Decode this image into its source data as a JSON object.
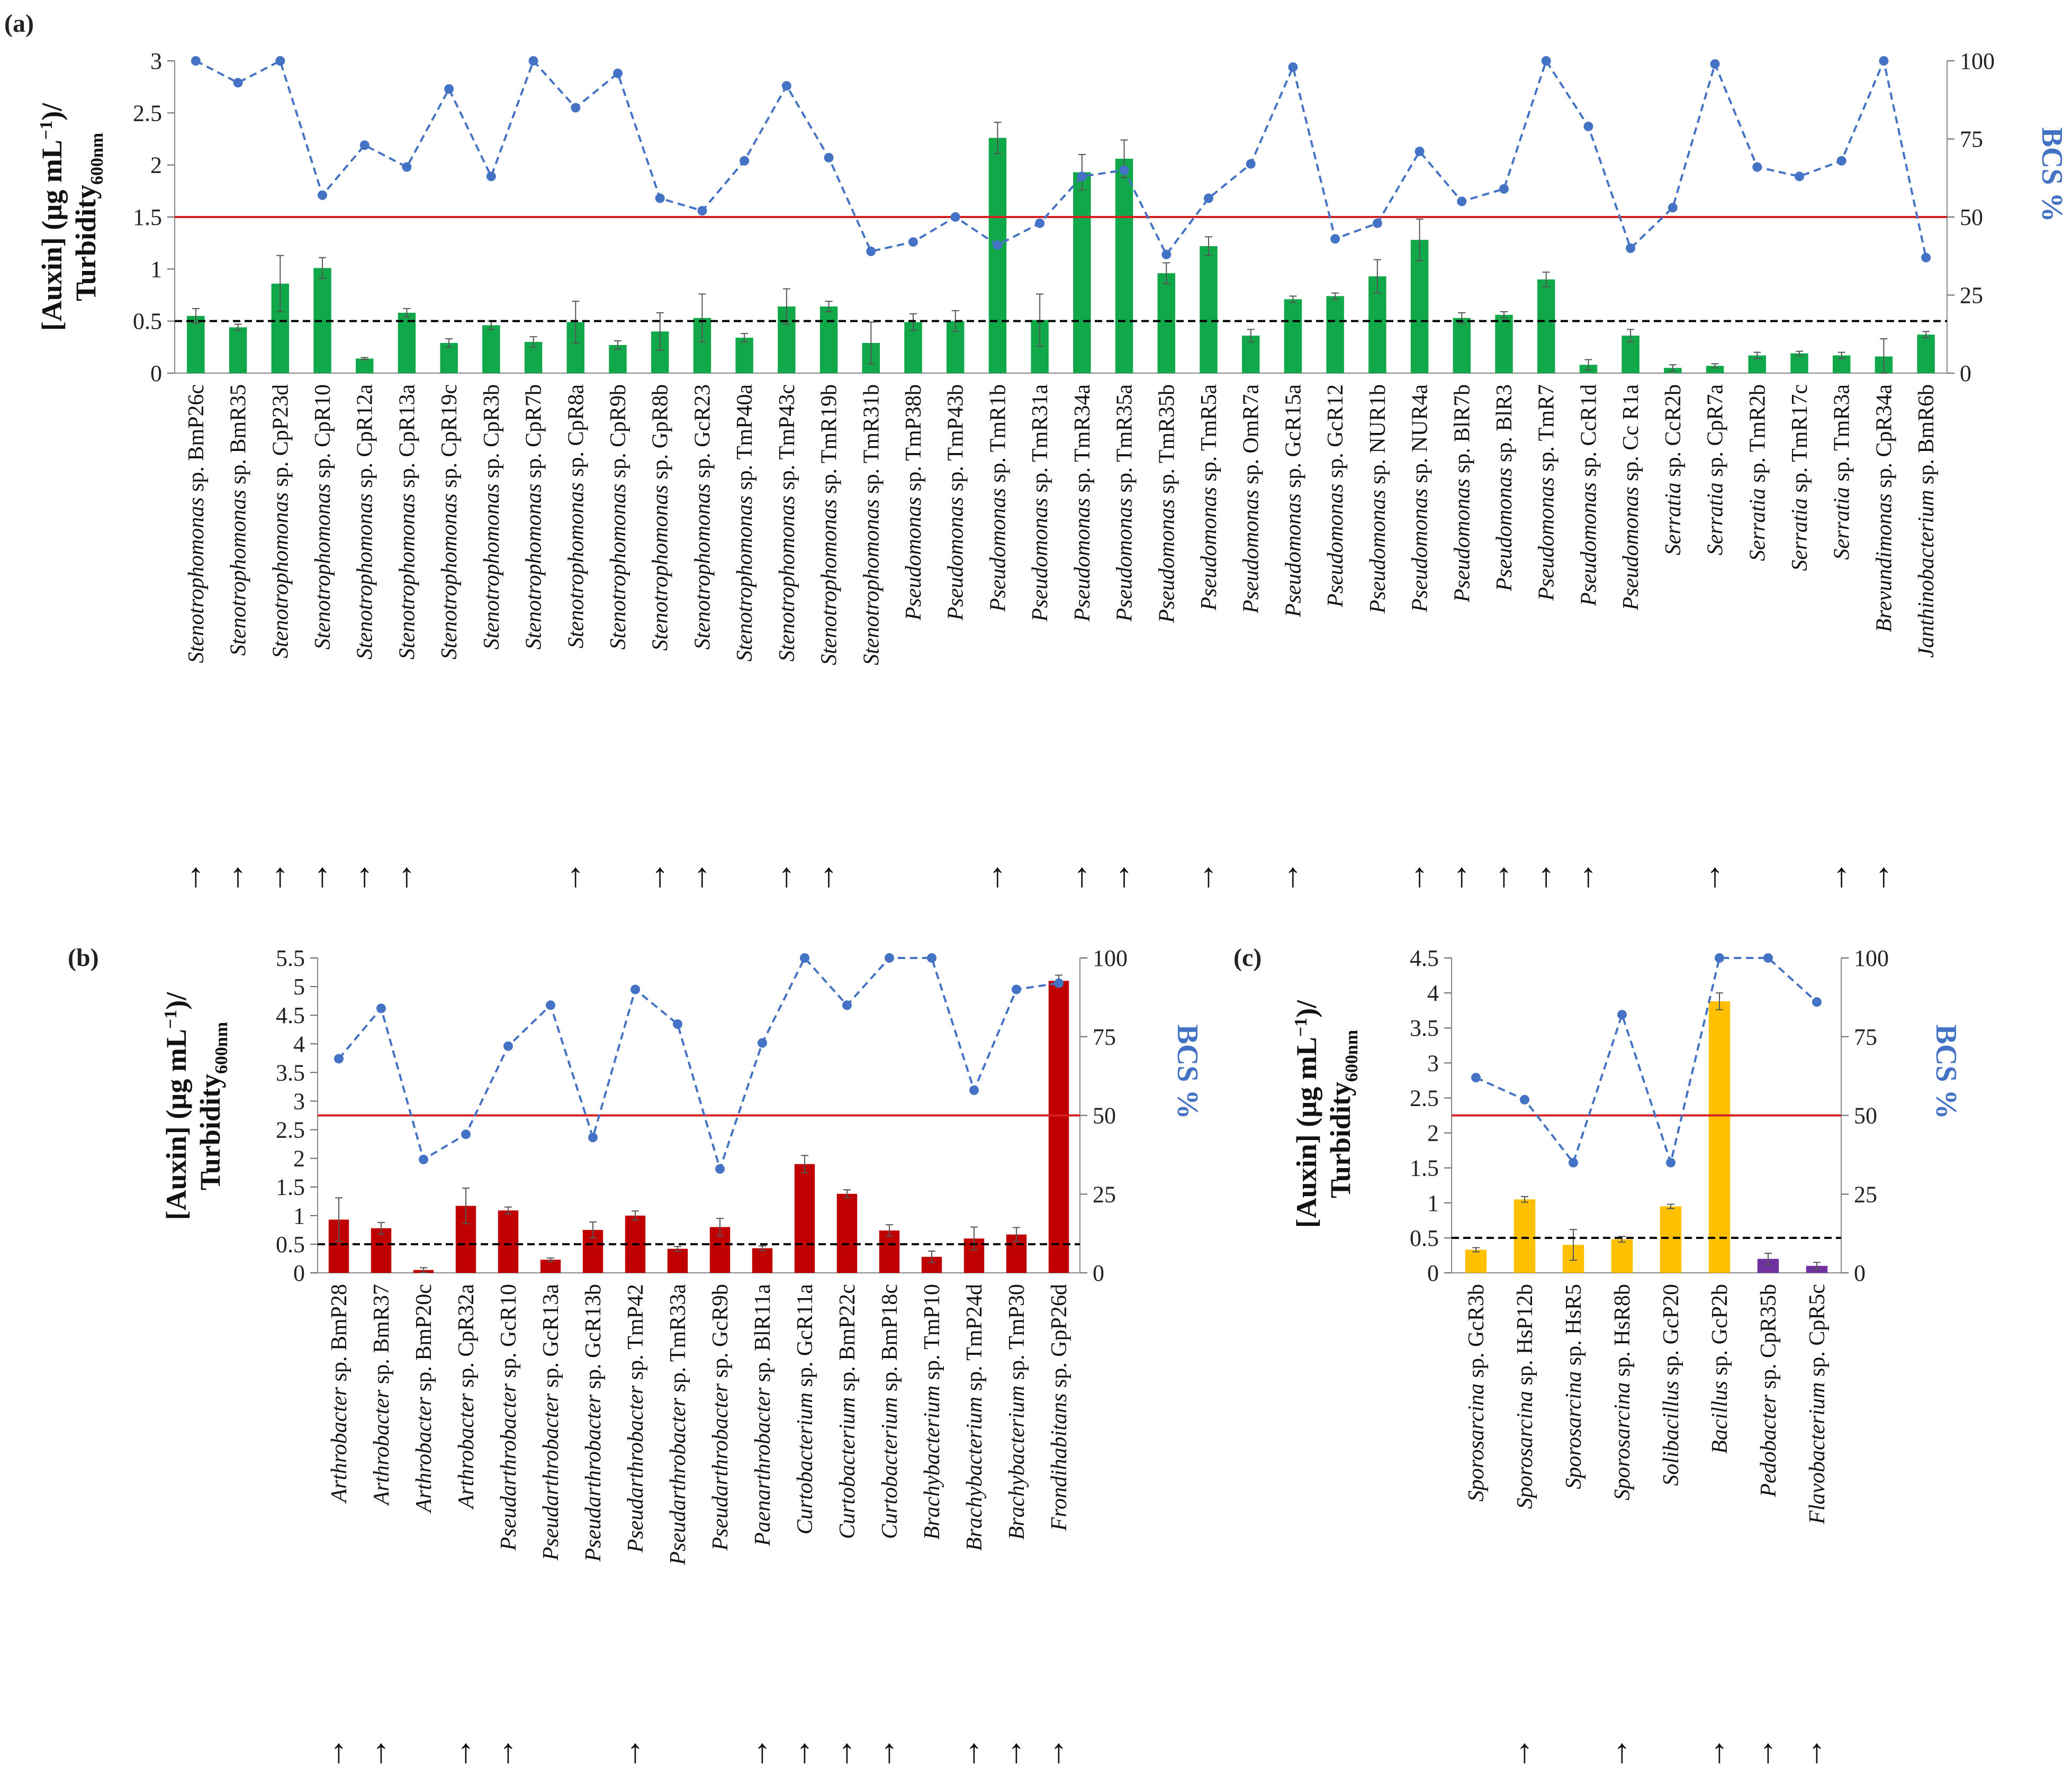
{
  "colors": {
    "green_bar": "#11a84a",
    "red_bar": "#c00000",
    "yellow_bar": "#ffc000",
    "purple_bar": "#7030a0",
    "bcs_line": "#4472c4",
    "threshold_line": "#d42020",
    "auxin_threshold": "#000000",
    "axis_text": "#222222",
    "bcs_label": "#4472c4"
  },
  "labels": {
    "y_left_line1": "[Auxin] (µg mL",
    "y_left_sup": "−1",
    "y_left_tail": ")/",
    "y_left_line2": "Turbidity",
    "y_left_sub": "600nm",
    "y_right": "BCS %",
    "arrow_glyph": "↑"
  },
  "chart_data": [
    {
      "panel": "(a)",
      "type": "bar",
      "title": "",
      "ylabel_left": "[Auxin] (µg mL−1)/ Turbidity600nm",
      "ylabel_right": "BCS %",
      "ylim_left": [
        0,
        3
      ],
      "yticks_left": [
        "0",
        "0.5",
        "1",
        "1.5",
        "2",
        "2.5",
        "3"
      ],
      "yticks_left_values": [
        0,
        0.5,
        1,
        1.5,
        2,
        2.5,
        3
      ],
      "ylim_right": [
        0,
        100
      ],
      "yticks_right": [
        "0",
        "25",
        "50",
        "75",
        "100"
      ],
      "yticks_right_values": [
        0,
        25,
        50,
        75,
        100
      ],
      "bcs_threshold": 50,
      "auxin_threshold": 0.5,
      "genera": [
        "Stenotrophomonas",
        "Stenotrophomonas",
        "Stenotrophomonas",
        "Stenotrophomonas",
        "Stenotrophomonas",
        "Stenotrophomonas",
        "Stenotrophomonas",
        "Stenotrophomonas",
        "Stenotrophomonas",
        "Stenotrophomonas",
        "Stenotrophomonas",
        "Stenotrophomonas",
        "Stenotrophomonas",
        "Stenotrophomonas",
        "Stenotrophomonas",
        "Stenotrophomonas",
        "Stenotrophomonas",
        "Pseudomonas",
        "Pseudomonas",
        "Pseudomonas",
        "Pseudomonas",
        "Pseudomonas",
        "Pseudomonas",
        "Pseudomonas",
        "Pseudomonas",
        "Pseudomonas",
        "Pseudomonas",
        "Pseudomonas",
        "Pseudomonas",
        "Pseudomonas",
        "Pseudomonas",
        "Pseudomonas",
        "Pseudomonas",
        "Pseudomonas",
        "Pseudomonas",
        "Serratia",
        "Serratia",
        "Serratia",
        "Serratia",
        "Serratia",
        "Brevundimonas",
        "Janthinobacterium"
      ],
      "strains": [
        "BmP26c",
        "BmR35",
        "CpP23d",
        "CpR10",
        "CpR12a",
        "CpR13a",
        "CpR19c",
        "CpR3b",
        "CpR7b",
        "CpR8a",
        "CpR9b",
        "GpR8b",
        "GcR23",
        "TmP40a",
        "TmP43c",
        "TmR19b",
        "TmR31b",
        "TmP38b",
        "TmP43b",
        "TmR1b",
        "TmR31a",
        "TmR34a",
        "TmR35a",
        "TmR35b",
        "TmR5a",
        "OmR7a",
        "GcR15a",
        "GcR12",
        "NUR1b",
        "NUR4a",
        "BlR7b",
        "BlR3",
        "TmR7",
        "CcR1d",
        "Cc R1a",
        "CcR2b",
        "CpR7a",
        "TmR2b",
        "TmR17c",
        "TmR3a",
        "CpR34a",
        "BmR6b"
      ],
      "categories": [
        "Stenotrophomonas sp. BmP26c",
        "Stenotrophomonas sp. BmR35",
        "Stenotrophomonas sp. CpP23d",
        "Stenotrophomonas sp. CpR10",
        "Stenotrophomonas sp. CpR12a",
        "Stenotrophomonas sp. CpR13a",
        "Stenotrophomonas sp. CpR19c",
        "Stenotrophomonas sp. CpR3b",
        "Stenotrophomonas sp. CpR7b",
        "Stenotrophomonas sp. CpR8a",
        "Stenotrophomonas sp. CpR9b",
        "Stenotrophomonas sp. GpR8b",
        "Stenotrophomonas sp. GcR23",
        "Stenotrophomonas sp. TmP40a",
        "Stenotrophomonas sp. TmP43c",
        "Stenotrophomonas sp. TmR19b",
        "Stenotrophomonas sp. TmR31b",
        "Pseudomonas sp. TmP38b",
        "Pseudomonas sp. TmP43b",
        "Pseudomonas sp. TmR1b",
        "Pseudomonas sp. TmR31a",
        "Pseudomonas sp. TmR34a",
        "Pseudomonas sp. TmR35a",
        "Pseudomonas sp. TmR35b",
        "Pseudomonas sp. TmR5a",
        "Pseudomonas sp. OmR7a",
        "Pseudomonas sp. GcR15a",
        "Pseudomonas sp. GcR12",
        "Pseudomonas sp. NUR1b",
        "Pseudomonas sp. NUR4a",
        "Pseudomonas sp. BlR7b",
        "Pseudomonas sp. BlR3",
        "Pseudomonas sp. TmR7",
        "Pseudomonas sp. CcR1d",
        "Pseudomonas sp. Cc R1a",
        "Serratia sp. CcR2b",
        "Serratia sp. CpR7a",
        "Serratia sp. TmR2b",
        "Serratia sp. TmR17c",
        "Serratia sp. TmR3a",
        "Brevundimonas sp. CpR34a",
        "Janthinobacterium sp. BmR6b"
      ],
      "auxin": [
        0.55,
        0.44,
        0.86,
        1.01,
        0.14,
        0.58,
        0.29,
        0.46,
        0.3,
        0.49,
        0.27,
        0.4,
        0.53,
        0.34,
        0.64,
        0.64,
        0.29,
        0.49,
        0.5,
        2.26,
        0.51,
        1.93,
        2.06,
        0.96,
        1.22,
        0.36,
        0.71,
        0.74,
        0.93,
        1.28,
        0.53,
        0.56,
        0.9,
        0.08,
        0.36,
        0.05,
        0.07,
        0.17,
        0.19,
        0.17,
        0.16,
        0.37
      ],
      "auxin_err": [
        0.07,
        0.03,
        0.27,
        0.1,
        0.01,
        0.04,
        0.04,
        0.04,
        0.05,
        0.2,
        0.04,
        0.18,
        0.23,
        0.04,
        0.17,
        0.05,
        0.2,
        0.08,
        0.1,
        0.15,
        0.25,
        0.17,
        0.18,
        0.1,
        0.09,
        0.06,
        0.03,
        0.03,
        0.16,
        0.2,
        0.05,
        0.03,
        0.07,
        0.05,
        0.06,
        0.03,
        0.02,
        0.03,
        0.02,
        0.03,
        0.17,
        0.03
      ],
      "bcs": [
        100,
        93,
        100,
        57,
        73,
        66,
        91,
        63,
        100,
        85,
        96,
        56,
        52,
        68,
        92,
        69,
        39,
        42,
        50,
        41,
        48,
        63,
        65,
        38,
        56,
        67,
        98,
        43,
        48,
        71,
        55,
        59,
        100,
        79,
        40,
        53,
        99,
        66,
        63,
        68,
        100,
        37
      ],
      "bar_colors": [
        "green",
        "green",
        "green",
        "green",
        "green",
        "green",
        "green",
        "green",
        "green",
        "green",
        "green",
        "green",
        "green",
        "green",
        "green",
        "green",
        "green",
        "green",
        "green",
        "green",
        "green",
        "green",
        "green",
        "green",
        "green",
        "green",
        "green",
        "green",
        "green",
        "green",
        "green",
        "green",
        "green",
        "green",
        "green",
        "green",
        "green",
        "green",
        "green",
        "green",
        "green",
        "green"
      ],
      "arrows": [
        true,
        true,
        true,
        true,
        true,
        true,
        false,
        false,
        false,
        true,
        false,
        true,
        true,
        false,
        true,
        true,
        false,
        false,
        false,
        true,
        false,
        true,
        true,
        false,
        true,
        false,
        true,
        false,
        false,
        true,
        true,
        true,
        true,
        true,
        false,
        false,
        true,
        false,
        false,
        true,
        true,
        false
      ]
    },
    {
      "panel": "(b)",
      "type": "bar",
      "title": "",
      "ylabel_left": "[Auxin] (µg mL−1)/ Turbidity600nm",
      "ylabel_right": "BCS %",
      "ylim_left": [
        0,
        5.5
      ],
      "yticks_left": [
        "0",
        "0.5",
        "1",
        "1.5",
        "2",
        "2.5",
        "3",
        "3.5",
        "4",
        "4.5",
        "5",
        "5.5"
      ],
      "yticks_left_values": [
        0,
        0.5,
        1,
        1.5,
        2,
        2.5,
        3,
        3.5,
        4,
        4.5,
        5,
        5.5
      ],
      "ylim_right": [
        0,
        100
      ],
      "yticks_right": [
        "0",
        "25",
        "50",
        "75",
        "100"
      ],
      "yticks_right_values": [
        0,
        25,
        50,
        75,
        100
      ],
      "bcs_threshold": 50,
      "auxin_threshold": 0.5,
      "genera": [
        "Arthrobacter",
        "Arthrobacter",
        "Arthrobacter",
        "Arthrobacter",
        "Pseudarthrobacter",
        "Pseudarthrobacter",
        "Pseudarthrobacter",
        "Pseudarthrobacter",
        "Pseudarthrobacter",
        "Pseudarthrobacter",
        "Paenarthrobacter",
        "Curtobacterium",
        "Curtobacterium",
        "Curtobacterium",
        "Brachybacterium",
        "Brachybacterium",
        "Brachybacterium",
        "Frondihabitans"
      ],
      "strains": [
        "BmP28",
        "BmR37",
        "BmP20c",
        "CpR32a",
        "GcR10",
        "GcR13a",
        "GcR13b",
        "TmP42",
        "TmR33a",
        "GcR9b",
        "BlR11a",
        "GcR11a",
        "BmP22c",
        "BmP18c",
        "TmP10",
        "TmP24d",
        "TmP30",
        "GpP26d"
      ],
      "categories": [
        "Arthrobacter sp. BmP28",
        "Arthrobacter sp. BmR37",
        "Arthrobacter sp. BmP20c",
        "Arthrobacter sp. CpR32a",
        "Pseudarthrobacter sp. GcR10",
        "Pseudarthrobacter sp. GcR13a",
        "Pseudarthrobacter sp. GcR13b",
        "Pseudarthrobacter sp. TmP42",
        "Pseudarthrobacter sp. TmR33a",
        "Pseudarthrobacter sp. GcR9b",
        "Paenarthrobacter sp. BlR11a",
        "Curtobacterium sp. GcR11a",
        "Curtobacterium sp. BmP22c",
        "Curtobacterium sp. BmP18c",
        "Brachybacterium sp. TmP10",
        "Brachybacterium sp. TmP24d",
        "Brachybacterium sp. TmP30",
        "Frondihabitans sp. GpP26d"
      ],
      "auxin": [
        0.93,
        0.78,
        0.05,
        1.17,
        1.09,
        0.23,
        0.75,
        1.0,
        0.42,
        0.8,
        0.43,
        1.9,
        1.38,
        0.74,
        0.28,
        0.6,
        0.67,
        5.1
      ],
      "auxin_err": [
        0.38,
        0.1,
        0.04,
        0.31,
        0.06,
        0.03,
        0.14,
        0.08,
        0.04,
        0.15,
        0.04,
        0.15,
        0.07,
        0.1,
        0.1,
        0.2,
        0.12,
        0.1
      ],
      "bcs": [
        68,
        84,
        36,
        44,
        72,
        85,
        43,
        90,
        79,
        33,
        73,
        100,
        85,
        100,
        100,
        58,
        90,
        92
      ],
      "bar_colors": [
        "red",
        "red",
        "red",
        "red",
        "red",
        "red",
        "red",
        "red",
        "red",
        "red",
        "red",
        "red",
        "red",
        "red",
        "red",
        "red",
        "red",
        "red"
      ],
      "arrows": [
        true,
        true,
        false,
        true,
        true,
        false,
        false,
        true,
        false,
        false,
        true,
        true,
        true,
        true,
        false,
        true,
        true,
        true
      ]
    },
    {
      "panel": "(c)",
      "type": "bar",
      "title": "",
      "ylabel_left": "[Auxin] (µg mL−1)/ Turbidity600nm",
      "ylabel_right": "BCS %",
      "ylim_left": [
        0,
        4.5
      ],
      "yticks_left": [
        "0",
        "0.5",
        "1",
        "1.5",
        "2",
        "2.5",
        "3",
        "3.5",
        "4",
        "4.5"
      ],
      "yticks_left_values": [
        0,
        0.5,
        1,
        1.5,
        2,
        2.5,
        3,
        3.5,
        4,
        4.5
      ],
      "ylim_right": [
        0,
        100
      ],
      "yticks_right": [
        "0",
        "25",
        "50",
        "75",
        "100"
      ],
      "yticks_right_values": [
        0,
        25,
        50,
        75,
        100
      ],
      "bcs_threshold": 50,
      "auxin_threshold": 0.5,
      "genera": [
        "Sporosarcina",
        "Sporosarcina",
        "Sporosarcina",
        "Sporosarcina",
        "Solibacillus",
        "Bacillus",
        "Pedobacter",
        "Flavobacterium"
      ],
      "strains": [
        "GcR3b",
        "HsP12b",
        "HsR5",
        "HsR8b",
        "GcP20",
        "GcP2b",
        "CpR35b",
        "CpR5c"
      ],
      "categories": [
        "Sporosarcina sp. GcR3b",
        "Sporosarcina sp. HsP12b",
        "Sporosarcina sp. HsR5",
        "Sporosarcina sp. HsR8b",
        "Solibacillus sp. GcP20",
        "Bacillus sp. GcP2b",
        "Pedobacter sp. CpR35b",
        "Flavobacterium sp. CpR5c"
      ],
      "auxin": [
        0.33,
        1.05,
        0.4,
        0.48,
        0.95,
        3.88,
        0.2,
        0.1
      ],
      "auxin_err": [
        0.03,
        0.04,
        0.22,
        0.04,
        0.03,
        0.12,
        0.08,
        0.05
      ],
      "bcs": [
        62,
        55,
        35,
        82,
        35,
        100,
        100,
        86
      ],
      "bar_colors": [
        "yellow",
        "yellow",
        "yellow",
        "yellow",
        "yellow",
        "yellow",
        "purple",
        "purple"
      ],
      "arrows": [
        false,
        true,
        false,
        true,
        false,
        true,
        true,
        true
      ]
    }
  ]
}
